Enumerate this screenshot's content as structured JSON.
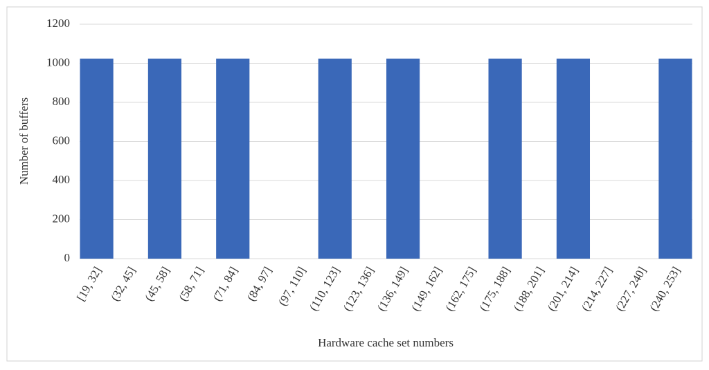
{
  "chart_data": {
    "type": "bar",
    "x_label": "Hardware cache set numbers",
    "y_label": "Number of  buffers",
    "categories": [
      "[19, 32]",
      "(32, 45]",
      "(45, 58]",
      "(58, 71]",
      "(71, 84]",
      "(84, 97]",
      "(97, 110]",
      "(110, 123]",
      "(123, 136]",
      "(136, 149]",
      "(149, 162]",
      "(162, 175]",
      "(175, 188]",
      "(188, 201]",
      "(201, 214]",
      "(214, 227]",
      "(227, 240]",
      "(240, 253]"
    ],
    "values": [
      1024,
      0,
      1024,
      0,
      1024,
      0,
      0,
      1024,
      0,
      1024,
      0,
      0,
      1024,
      0,
      1024,
      0,
      0,
      1024
    ],
    "color": "#3a68b8",
    "ylim": [
      0,
      1200
    ],
    "yticks": [
      0,
      200,
      400,
      600,
      800,
      1000,
      1200
    ],
    "grid": true
  }
}
